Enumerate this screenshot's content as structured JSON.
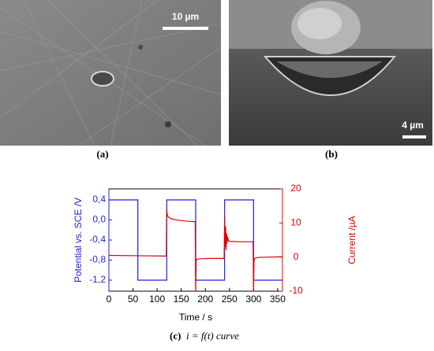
{
  "panels": [
    {
      "label": "(a)",
      "scale_bar": "10 µm"
    },
    {
      "label": "(b)",
      "scale_bar": "4 µm"
    },
    {
      "label": "(c)",
      "caption": "i = f(t) curve"
    }
  ],
  "chart_data": {
    "type": "line",
    "xlabel": "Time / s",
    "ylabel": "Potential vs. SCE /V",
    "y2label": "Current /µA",
    "xlim": [
      0,
      360
    ],
    "xticks": [
      0,
      50,
      100,
      150,
      200,
      250,
      300,
      350
    ],
    "ylim": [
      -1.42,
      0.62
    ],
    "yticks": [
      {
        "value": -1.2,
        "label": "-1,2"
      },
      {
        "value": -0.8,
        "label": "-0,8"
      },
      {
        "value": -0.4,
        "label": "-0,4"
      },
      {
        "value": 0,
        "label": "0,0"
      },
      {
        "value": 0.4,
        "label": "0,4"
      }
    ],
    "y2lim": [
      -10,
      20
    ],
    "y2ticks": [
      -10,
      0,
      10,
      20
    ],
    "series": [
      {
        "color": "#1f1fe0",
        "x": [
          0,
          60,
          60,
          120,
          120,
          180,
          180,
          240,
          240,
          300,
          300,
          360
        ],
        "values": [
          0.4,
          0.4,
          -1.2,
          -1.2,
          0.4,
          0.4,
          -1.2,
          -1.2,
          0.4,
          0.4,
          -1.2,
          -1.2
        ]
      },
      {
        "color": "#e00000",
        "axis": "y2",
        "x": [
          0,
          60,
          119,
          120,
          121,
          123,
          126,
          130,
          140,
          150,
          165,
          179,
          180,
          181,
          183,
          190,
          210,
          239,
          240,
          241,
          242,
          243,
          244,
          245,
          246,
          248,
          252,
          270,
          299,
          300,
          301,
          303,
          310,
          330,
          360
        ],
        "values": [
          0.5,
          0.4,
          0.3,
          14,
          12.5,
          11.8,
          11.5,
          11.2,
          10.9,
          10.7,
          10.5,
          10.4,
          -10,
          -1,
          -0.6,
          -0.5,
          -0.4,
          -0.4,
          12,
          3,
          9,
          2,
          7,
          4,
          6,
          4.8,
          4.6,
          4.5,
          4.5,
          -10,
          -1,
          -0.3,
          -0.1,
          0,
          0.1
        ]
      }
    ]
  }
}
